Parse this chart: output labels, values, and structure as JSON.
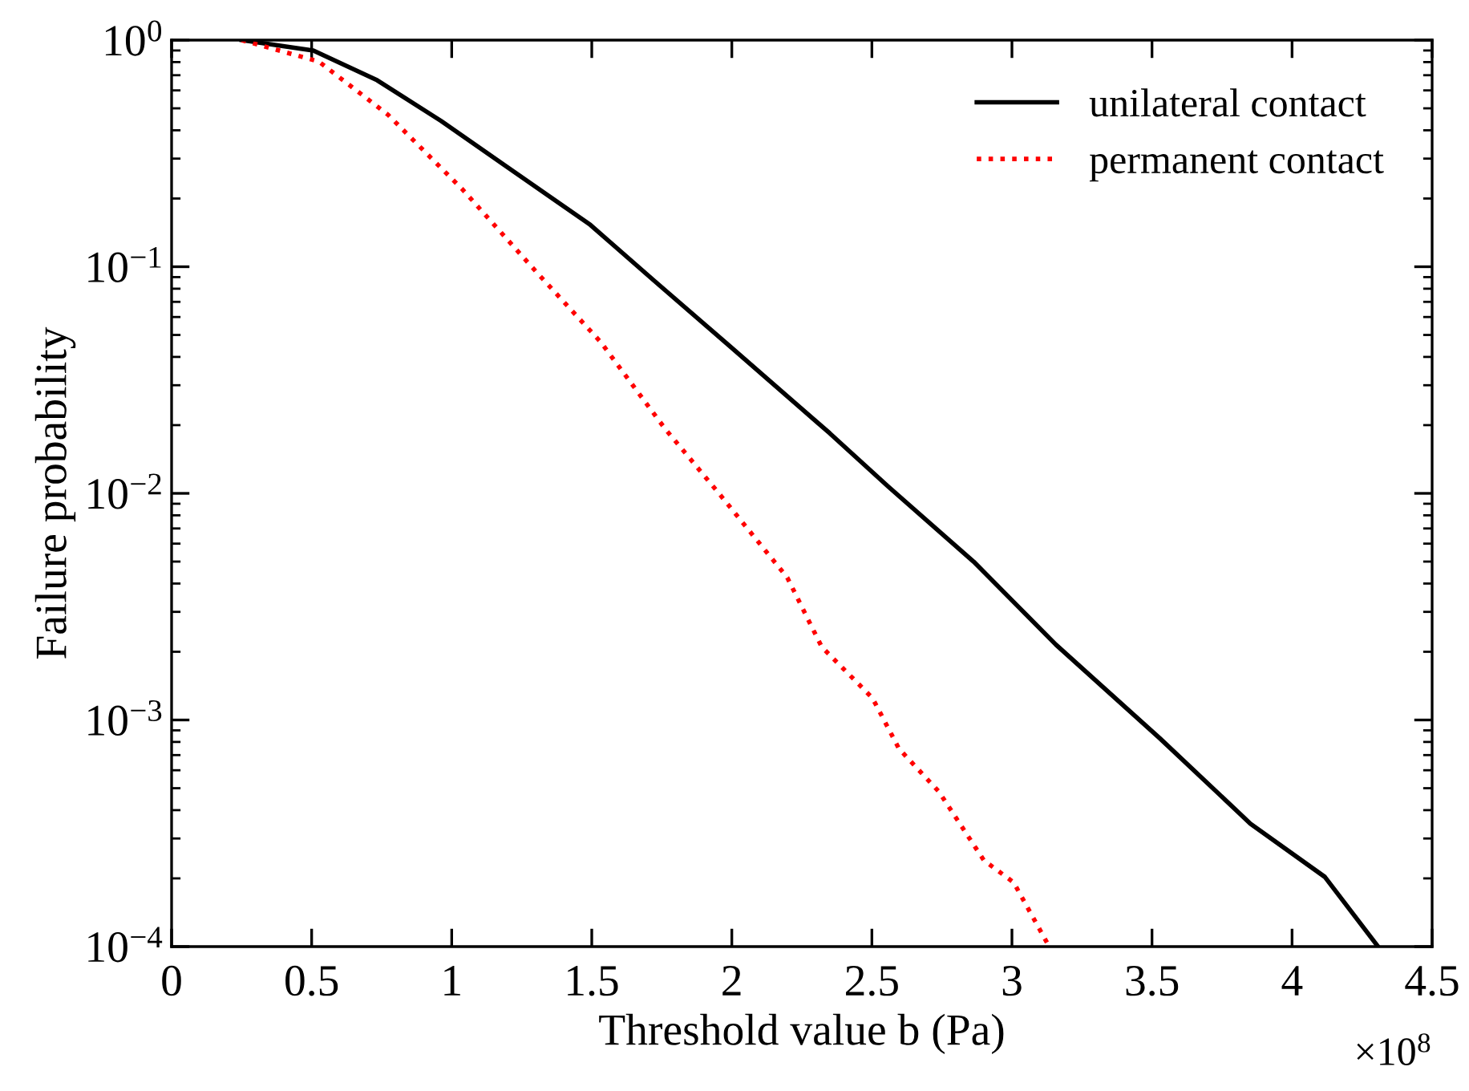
{
  "chart_data": {
    "type": "line",
    "xlabel": "Threshold value b (Pa)",
    "ylabel": "Failure probability",
    "log": "y",
    "xlim": [
      0,
      4.5
    ],
    "ylim": [
      0.0001,
      1
    ],
    "xticks": [
      0,
      0.5,
      1,
      1.5,
      2,
      2.5,
      3,
      3.5,
      4,
      4.5
    ],
    "yticks": [
      {
        "value": 0.0001,
        "label": "10$^{−4}$"
      },
      {
        "value": 0.001,
        "label": "10$^{−3}$"
      },
      {
        "value": 0.01,
        "label": "10$^{−2}$"
      },
      {
        "value": 0.1,
        "label": "10$^{−1}$"
      },
      {
        "value": 1,
        "label": "10$^{0}$"
      }
    ],
    "annotations": [
      "×10$^{8}$"
    ],
    "grid": false,
    "legend": "top right",
    "marker": "none",
    "series": [
      {
        "name": "unilateral contact",
        "color": "#000000",
        "line_style": "solid",
        "x": [
          0.25,
          0.506,
          0.734,
          0.962,
          1.19,
          1.495,
          1.723,
          1.989,
          2.35,
          2.559,
          2.863,
          3.157,
          3.528,
          3.851,
          4.117,
          4.307
        ],
        "values": [
          1,
          0.9,
          0.665,
          0.44,
          0.28,
          0.153,
          0.0867,
          0.045,
          0.0184,
          0.0107,
          0.005,
          0.00215,
          0.00083,
          0.000349,
          0.000203,
          0.0001
        ]
      },
      {
        "name": "permanent contact",
        "color": "#ff0000",
        "line_style": "dotted",
        "x": [
          0.25,
          0.525,
          0.773,
          1.039,
          1.305,
          1.532,
          1.76,
          1.951,
          2.198,
          2.321,
          2.502,
          2.597,
          2.739,
          2.9,
          3.006,
          3.133
        ],
        "values": [
          1,
          0.805,
          0.468,
          0.219,
          0.094,
          0.0465,
          0.0194,
          0.0101,
          0.00425,
          0.0021,
          0.00125,
          0.000746,
          0.000483,
          0.00024,
          0.000192,
          0.0001
        ]
      }
    ]
  }
}
